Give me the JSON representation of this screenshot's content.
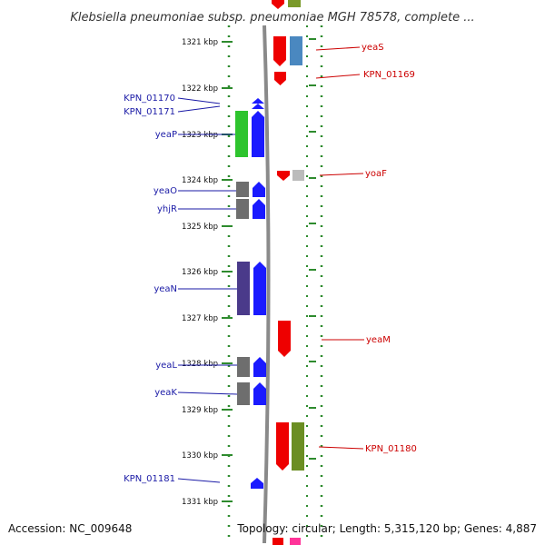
{
  "title": "Klebsiella pneumoniae subsp. pneumoniae MGH 78578, complete ...",
  "accession": "Accession: NC_009648",
  "topology": "Topology: circular; Length: 5,315,120 bp; Genes: 4,887",
  "scale_unit": "kbp",
  "ticks": [
    {
      "kbp": 1321,
      "label": "1321 kbp"
    },
    {
      "kbp": 1322,
      "label": "1322 kbp"
    },
    {
      "kbp": 1323,
      "label": "1323 kbp"
    },
    {
      "kbp": 1324,
      "label": "1324 kbp"
    },
    {
      "kbp": 1325,
      "label": "1325 kbp"
    },
    {
      "kbp": 1326,
      "label": "1326 kbp"
    },
    {
      "kbp": 1327,
      "label": "1327 kbp"
    },
    {
      "kbp": 1328,
      "label": "1328 kbp"
    },
    {
      "kbp": 1329,
      "label": "1329 kbp"
    },
    {
      "kbp": 1330,
      "label": "1330 kbp"
    },
    {
      "kbp": 1331,
      "label": "1331 kbp"
    }
  ],
  "strand_colors": {
    "plus": "#ee0000",
    "minus": "#1a1aff",
    "plus_label": "#cc0000",
    "minus_label": "#1a1aa6"
  },
  "genes": [
    {
      "name": "yeaS",
      "strand": "+",
      "start_kbp": 1320.9,
      "end_kbp": 1321.55
    },
    {
      "name": "KPN_01169",
      "strand": "+",
      "start_kbp": 1321.75,
      "end_kbp": 1322.0
    },
    {
      "name": "KPN_01170",
      "strand": "-",
      "start_kbp": 1322.25,
      "end_kbp": 1322.35
    },
    {
      "name": "KPN_01171",
      "strand": "-",
      "start_kbp": 1322.4,
      "end_kbp": 1322.47
    },
    {
      "name": "yeaP",
      "strand": "-",
      "start_kbp": 1322.5,
      "end_kbp": 1323.5
    },
    {
      "name": "yoaF",
      "strand": "+",
      "start_kbp": 1323.75,
      "end_kbp": 1323.98
    },
    {
      "name": "yeaO",
      "strand": "-",
      "start_kbp": 1324.05,
      "end_kbp": 1324.4
    },
    {
      "name": "yhjR",
      "strand": "-",
      "start_kbp": 1324.42,
      "end_kbp": 1324.85
    },
    {
      "name": "yeaN",
      "strand": "-",
      "start_kbp": 1325.75,
      "end_kbp": 1326.95
    },
    {
      "name": "yeaM",
      "strand": "+",
      "start_kbp": 1327.05,
      "end_kbp": 1327.85
    },
    {
      "name": "yeaL",
      "strand": "-",
      "start_kbp": 1327.85,
      "end_kbp": 1328.3
    },
    {
      "name": "yeaK",
      "strand": "-",
      "start_kbp": 1328.4,
      "end_kbp": 1328.9
    },
    {
      "name": "KPN_01180",
      "strand": "+",
      "start_kbp": 1330.29,
      "end_kbp": 1330.35
    },
    {
      "name": "KPN_01181",
      "strand": "-",
      "start_kbp": 1330.5,
      "end_kbp": 1330.75
    }
  ]
}
